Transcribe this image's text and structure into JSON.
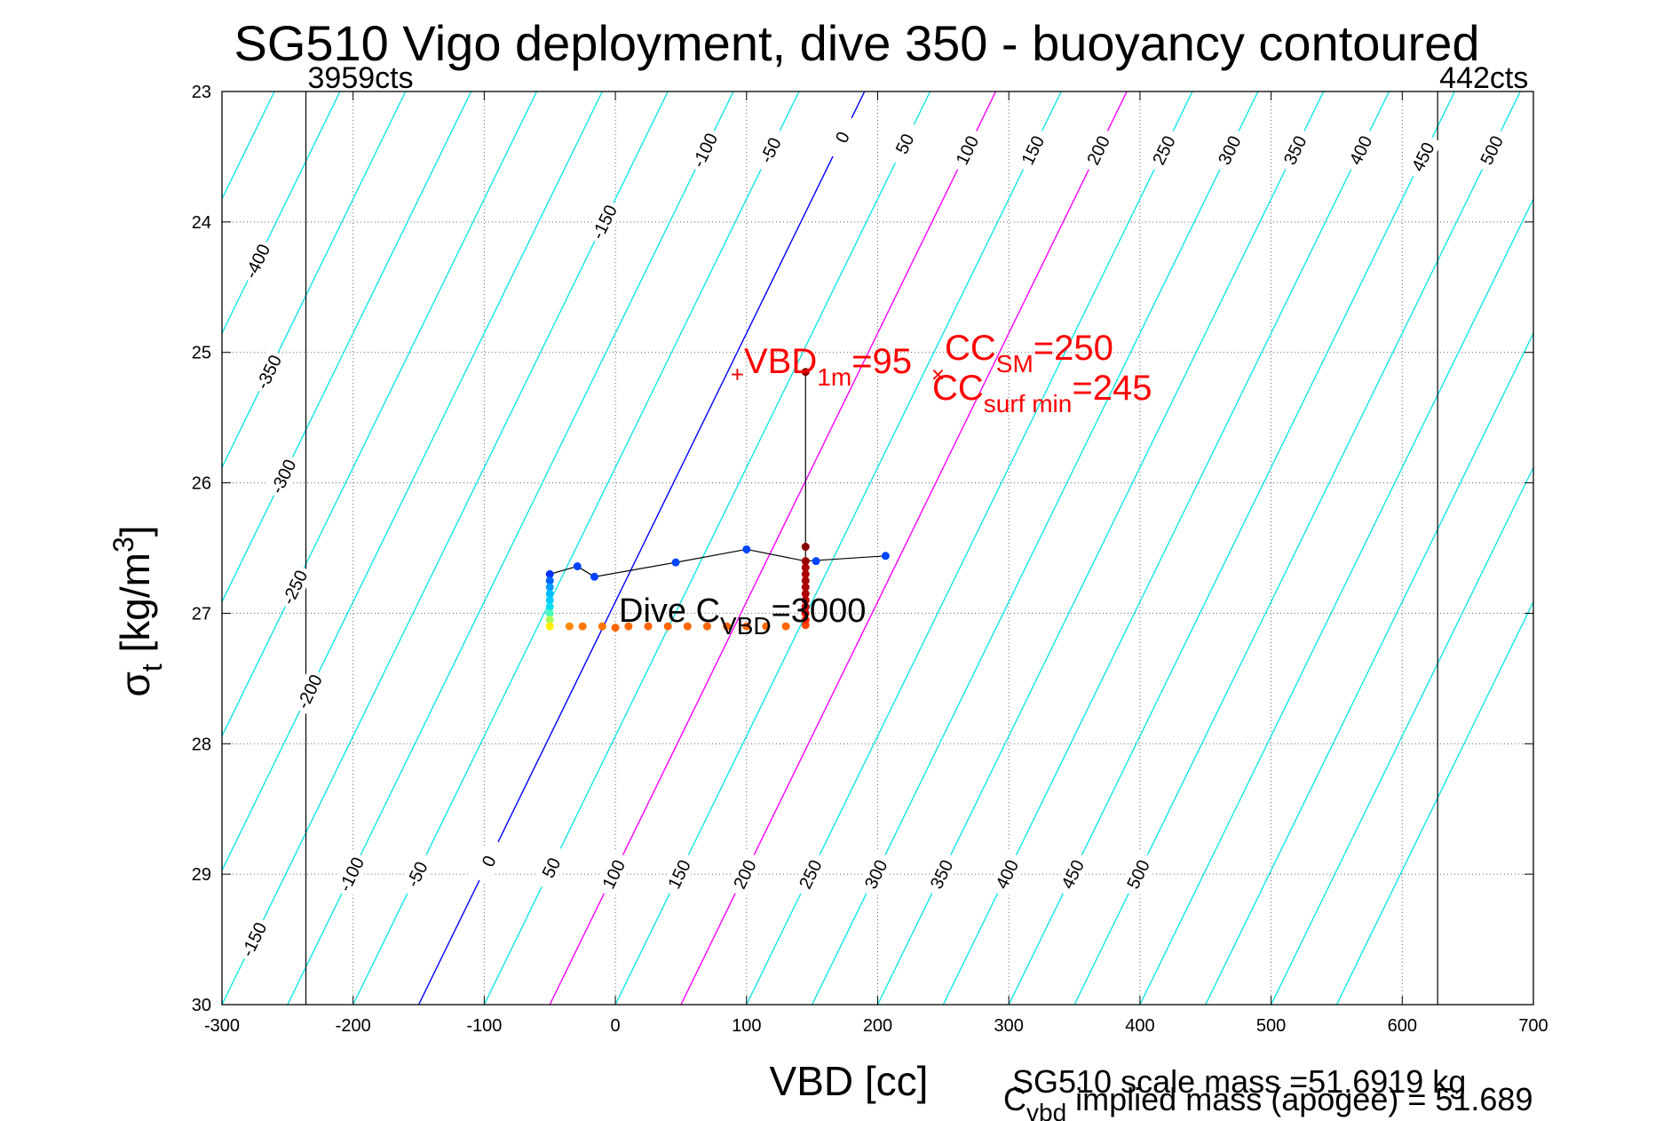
{
  "chart_data": {
    "type": "scatter",
    "title": "SG510 Vigo deployment, dive 350 - buoyancy contoured",
    "xlabel": "VBD [cc]",
    "ylabel": {
      "base": "σ",
      "sub": "t",
      "rest": " [kg/m",
      "sup": "3",
      "close": "]"
    },
    "xlim": [
      -300,
      700
    ],
    "ylim": [
      23,
      30
    ],
    "y_reversed": true,
    "grid": true,
    "xticks": [
      -300,
      -200,
      -100,
      0,
      100,
      200,
      300,
      400,
      500,
      600,
      700
    ],
    "yticks": [
      23,
      24,
      25,
      26,
      27,
      28,
      29,
      30
    ],
    "xtick_labels": [
      "-300",
      "-200",
      "-100",
      "0",
      "100",
      "200",
      "300",
      "400",
      "500",
      "600",
      "700"
    ],
    "ytick_labels": [
      "23",
      "24",
      "25",
      "26",
      "27",
      "28",
      "29",
      "30"
    ],
    "contours": {
      "levels": [
        -400,
        -350,
        -300,
        -250,
        -200,
        -150,
        -100,
        -50,
        0,
        50,
        100,
        150,
        200,
        250,
        300,
        350,
        400,
        450,
        500
      ],
      "slope_cc_per_kgm3": 44.4,
      "offset_at_sigma30": -150,
      "colors": {
        "default": "#00e5e5",
        "zero": "#0000ff",
        "surface": "#ff00ff"
      },
      "surface_levels": [
        100,
        200
      ],
      "top_labels": [
        {
          "text": "-400",
          "sigma": 24.3
        },
        {
          "text": "-350",
          "sigma": 25.15
        },
        {
          "text": "-300",
          "sigma": 25.95
        },
        {
          "text": "-250",
          "sigma": 26.8
        },
        {
          "text": "-200",
          "sigma": 27.6
        },
        {
          "text": "-150",
          "sigma": 24.0
        },
        {
          "text": "-100",
          "sigma": 23.45
        },
        {
          "text": "-50",
          "sigma": 23.45
        },
        {
          "text": "0",
          "sigma": 23.35
        },
        {
          "text": "50",
          "sigma": 23.4
        },
        {
          "text": "100",
          "sigma": 23.45
        },
        {
          "text": "150",
          "sigma": 23.45
        },
        {
          "text": "200",
          "sigma": 23.45
        },
        {
          "text": "250",
          "sigma": 23.45
        },
        {
          "text": "300",
          "sigma": 23.45
        },
        {
          "text": "350",
          "sigma": 23.45
        },
        {
          "text": "400",
          "sigma": 23.45
        },
        {
          "text": "450",
          "sigma": 23.5
        },
        {
          "text": "500",
          "sigma": 23.45
        }
      ],
      "bottom_labels": [
        {
          "text": "-150",
          "sigma": 29.5
        },
        {
          "text": "-100",
          "sigma": 29.0
        },
        {
          "text": "-50",
          "sigma": 29.0
        },
        {
          "text": "0",
          "sigma": 28.9
        },
        {
          "text": "50",
          "sigma": 28.95
        },
        {
          "text": "100",
          "sigma": 29.0
        },
        {
          "text": "150",
          "sigma": 29.0
        },
        {
          "text": "200",
          "sigma": 29.0
        },
        {
          "text": "250",
          "sigma": 29.0
        },
        {
          "text": "300",
          "sigma": 29.0
        },
        {
          "text": "350",
          "sigma": 29.0
        },
        {
          "text": "400",
          "sigma": 29.0
        },
        {
          "text": "450",
          "sigma": 29.0
        },
        {
          "text": "500",
          "sigma": 29.0
        }
      ]
    },
    "limit_lines": [
      {
        "x": -236,
        "label": "3959cts",
        "label_side": "right"
      },
      {
        "x": 627,
        "label": "442cts",
        "label_side": "right"
      }
    ],
    "series": [
      {
        "points": [
          {
            "x": -50,
            "y": 26.7,
            "c": "#0033ff"
          },
          {
            "x": -29,
            "y": 26.64,
            "c": "#0044ff"
          },
          {
            "x": -16,
            "y": 26.72,
            "c": "#0044ff"
          },
          {
            "x": 46,
            "y": 26.61,
            "c": "#0044ff"
          },
          {
            "x": 100,
            "y": 26.51,
            "c": "#0044ff"
          },
          {
            "x": 153,
            "y": 26.6,
            "c": "#0044ff"
          },
          {
            "x": 206,
            "y": 26.56,
            "c": "#0044ff"
          },
          {
            "x": -50,
            "y": 26.75,
            "c": "#0066ff"
          },
          {
            "x": -50,
            "y": 26.8,
            "c": "#0099ff"
          },
          {
            "x": -50,
            "y": 26.85,
            "c": "#00bbff"
          },
          {
            "x": -50,
            "y": 26.9,
            "c": "#00ccff"
          },
          {
            "x": -50,
            "y": 26.95,
            "c": "#00ddee"
          },
          {
            "x": -50,
            "y": 27.0,
            "c": "#44ffbb"
          },
          {
            "x": -50,
            "y": 27.05,
            "c": "#aaff55"
          },
          {
            "x": -50,
            "y": 27.1,
            "c": "#ffee00"
          },
          {
            "x": -35,
            "y": 27.1,
            "c": "#ff8800"
          },
          {
            "x": -25,
            "y": 27.1,
            "c": "#ff7700"
          },
          {
            "x": -10,
            "y": 27.1,
            "c": "#ff7700"
          },
          {
            "x": 0,
            "y": 27.11,
            "c": "#ff6600"
          },
          {
            "x": 10,
            "y": 27.1,
            "c": "#ff6600"
          },
          {
            "x": 25,
            "y": 27.1,
            "c": "#ff6600"
          },
          {
            "x": 40,
            "y": 27.1,
            "c": "#ff6600"
          },
          {
            "x": 55,
            "y": 27.1,
            "c": "#ff6600"
          },
          {
            "x": 70,
            "y": 27.1,
            "c": "#ff6600"
          },
          {
            "x": 85,
            "y": 27.1,
            "c": "#ff6600"
          },
          {
            "x": 100,
            "y": 27.1,
            "c": "#ff6600"
          },
          {
            "x": 115,
            "y": 27.1,
            "c": "#ff6600"
          },
          {
            "x": 130,
            "y": 27.1,
            "c": "#ff6600"
          },
          {
            "x": 145,
            "y": 27.09,
            "c": "#ff4400"
          },
          {
            "x": 145,
            "y": 27.05,
            "c": "#ff2200"
          },
          {
            "x": 145,
            "y": 27.0,
            "c": "#ee0000"
          },
          {
            "x": 145,
            "y": 26.95,
            "c": "#cc0000"
          },
          {
            "x": 145,
            "y": 26.9,
            "c": "#bb0000"
          },
          {
            "x": 145,
            "y": 26.85,
            "c": "#aa0000"
          },
          {
            "x": 145,
            "y": 26.8,
            "c": "#aa0000"
          },
          {
            "x": 145,
            "y": 26.75,
            "c": "#aa0000"
          },
          {
            "x": 145,
            "y": 26.7,
            "c": "#aa0000"
          },
          {
            "x": 145,
            "y": 26.65,
            "c": "#aa0000"
          },
          {
            "x": 145,
            "y": 26.6,
            "c": "#990000"
          },
          {
            "x": 145,
            "y": 26.49,
            "c": "#880000"
          },
          {
            "x": 145,
            "y": 25.15,
            "c": "#880000"
          }
        ],
        "path": [
          [
            -50,
            27.1
          ],
          [
            -50,
            26.7
          ],
          [
            -29,
            26.64
          ],
          [
            -16,
            26.72
          ],
          [
            46,
            26.61
          ],
          [
            100,
            26.51
          ],
          [
            145,
            26.6
          ],
          [
            206,
            26.56
          ]
        ],
        "vline": [
          [
            145,
            25.15
          ],
          [
            145,
            27.1
          ]
        ]
      }
    ],
    "annotations": {
      "vbd1m": {
        "marker": "+",
        "x": 93,
        "y": 25.17,
        "text": "VBD",
        "sub": "1m",
        "rest": "=95"
      },
      "ccsm": {
        "marker": "×",
        "x": 246,
        "y": 25.17,
        "text": "CC",
        "sub": "SM",
        "rest": "=250"
      },
      "ccsurf": {
        "text": "CC",
        "sub": "surf min",
        "rest": "=245"
      },
      "divec": {
        "text": "Dive C",
        "sub": "VBD",
        "rest": "=3000"
      }
    },
    "footer": {
      "line1": "SG510 scale mass =51.6919 kg",
      "line2_base": "C",
      "line2_sub": "vbd",
      "line2_rest": " implied mass (apogee) = 51.689"
    }
  }
}
